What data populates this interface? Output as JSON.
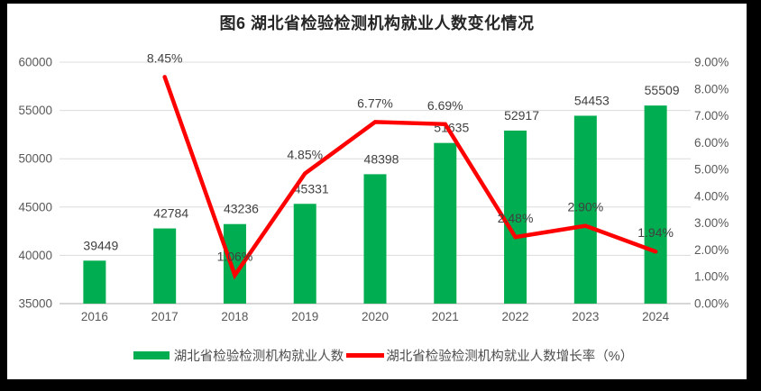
{
  "chart": {
    "title": "图6 湖北省检验检测机构就业人数变化情况"
  },
  "chart_data": {
    "type": "bar+line combo",
    "title": "图6 湖北省检验检测机构就业人数变化情况",
    "categories": [
      "2016",
      "2017",
      "2018",
      "2019",
      "2020",
      "2021",
      "2022",
      "2023",
      "2024"
    ],
    "series": [
      {
        "name": "湖北省检验检测机构就业人数",
        "type": "bar",
        "axis": "left",
        "color": "#00AD50",
        "values": [
          39449,
          42784,
          43236,
          45331,
          48398,
          51635,
          52917,
          54453,
          55509
        ],
        "labels": [
          "39449",
          "42784",
          "43236",
          "45331",
          "48398",
          "51635",
          "52917",
          "54453",
          "55509"
        ]
      },
      {
        "name": "湖北省检验检测机构就业人数增长率（%）",
        "type": "line",
        "axis": "right",
        "color": "#FF0000",
        "values": [
          null,
          8.45,
          1.06,
          4.85,
          6.77,
          6.69,
          2.48,
          2.9,
          1.94
        ],
        "labels": [
          null,
          "8.45%",
          "1.06%",
          "4.85%",
          "6.77%",
          "6.69%",
          "2.48%",
          "2.90%",
          "1.94%"
        ]
      }
    ],
    "left_axis": {
      "min": 35000,
      "max": 60000,
      "step": 5000,
      "ticks": [
        "60000",
        "55000",
        "50000",
        "45000",
        "40000",
        "35000"
      ]
    },
    "right_axis": {
      "min": 0,
      "max": 9,
      "step": 1,
      "ticks": [
        "9.00%",
        "8.00%",
        "7.00%",
        "6.00%",
        "5.00%",
        "4.00%",
        "3.00%",
        "2.00%",
        "1.00%",
        "0.00%"
      ]
    },
    "grid": true,
    "legend_position": "bottom",
    "style": {
      "grid_color": "#DCDCDC",
      "axis_line_color": "#C8C8C8",
      "tick_label_color": "#595959",
      "data_label_color": "#404040",
      "background": "#FFFFFF",
      "frame_color": "#000000"
    }
  }
}
